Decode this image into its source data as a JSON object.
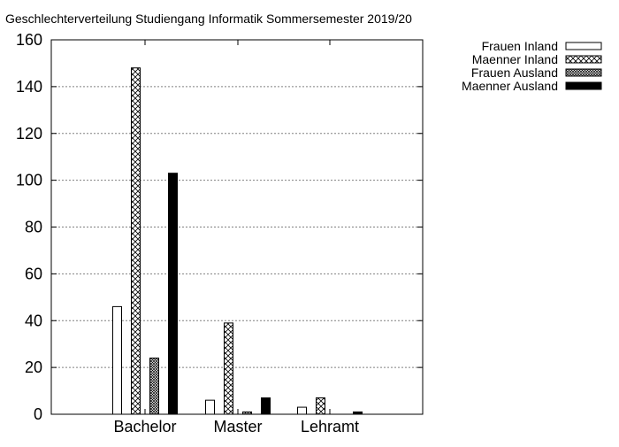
{
  "chart_data": {
    "type": "bar",
    "title": "Geschlechterverteilung Studiengang Informatik Sommersemester 2019/20",
    "xlabel": "",
    "ylabel": "",
    "ylim": [
      0,
      160
    ],
    "yticks": [
      0,
      20,
      40,
      60,
      80,
      100,
      120,
      140,
      160
    ],
    "grid": true,
    "legend_position": "top-right outside",
    "categories": [
      "Bachelor",
      "Master",
      "Lehramt"
    ],
    "series": [
      {
        "name": "Frauen Inland",
        "values": [
          46,
          6,
          3
        ],
        "pattern": "empty"
      },
      {
        "name": "Maenner Inland",
        "values": [
          148,
          39,
          7
        ],
        "pattern": "crosshatch"
      },
      {
        "name": "Frauen Ausland",
        "values": [
          24,
          1,
          0
        ],
        "pattern": "dense-crosshatch"
      },
      {
        "name": "Maenner Ausland",
        "values": [
          103,
          7,
          1
        ],
        "pattern": "solid"
      }
    ],
    "colors": {
      "stroke": "#000000",
      "solid": "#000000",
      "background": "#ffffff",
      "grid": "#808080"
    }
  }
}
